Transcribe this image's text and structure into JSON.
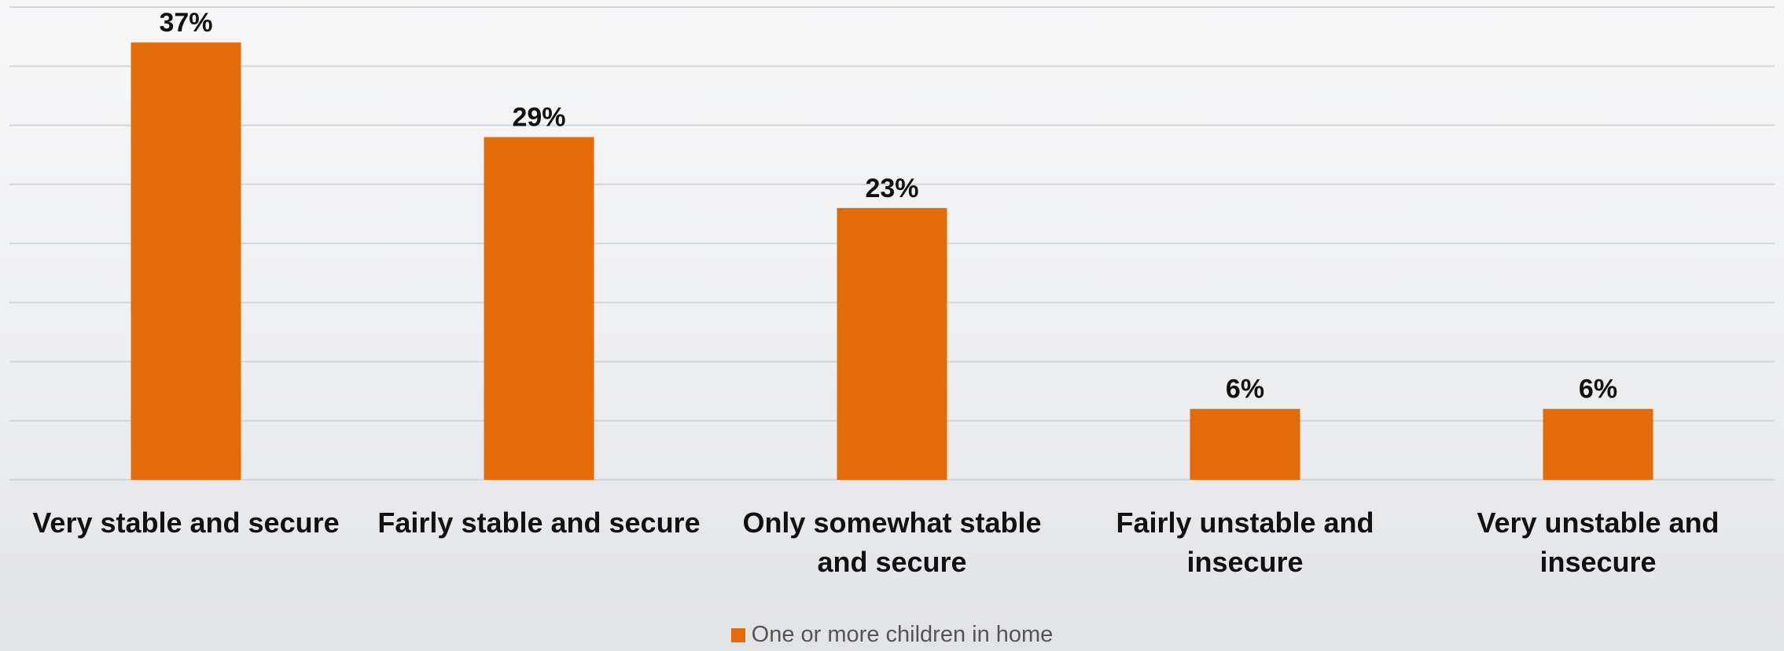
{
  "chart_data": {
    "type": "bar",
    "categories": [
      "Very stable and secure",
      "Fairly stable and secure",
      "Only somewhat stable and secure",
      "Fairly unstable and insecure",
      "Very unstable and insecure"
    ],
    "series": [
      {
        "name": "One or more children in home",
        "color": "#e36c0a",
        "values": [
          37,
          29,
          23,
          6,
          6
        ],
        "value_labels": [
          "37%",
          "29%",
          "23%",
          "6%",
          "6%"
        ]
      }
    ],
    "ylim": [
      0,
      40
    ],
    "yticks": [
      0,
      5,
      10,
      15,
      20,
      25,
      30,
      35,
      40
    ],
    "grid": true,
    "legend": "bottom"
  }
}
